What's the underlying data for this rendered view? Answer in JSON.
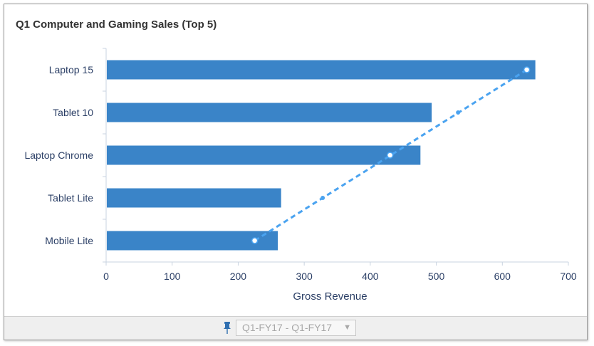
{
  "panel": {
    "title": "Q1 Computer and Gaming Sales (Top 5)"
  },
  "footer": {
    "filter_value": "Q1-FY17 - Q1-FY17",
    "pin_icon": "pin-icon",
    "caret_icon": "chevron-down-icon"
  },
  "colors": {
    "bar": "#3a84c8",
    "trend": "#4aa3f0",
    "axis_text": "#2b3f66"
  },
  "chart_data": {
    "type": "bar",
    "orientation": "horizontal",
    "title": "Q1 Computer and Gaming Sales (Top 5)",
    "xlabel": "Gross Revenue",
    "ylabel": "",
    "xlim": [
      0,
      700
    ],
    "xticks": [
      "0",
      "100",
      "200",
      "300",
      "400",
      "500",
      "600",
      "700"
    ],
    "categories": [
      "Laptop 15",
      "Tablet 10",
      "Laptop Chrome",
      "Tablet Lite",
      "Mobile Lite"
    ],
    "values": [
      650,
      493,
      476,
      265,
      260
    ],
    "trendline": {
      "type": "linear",
      "style": "dashed",
      "points": [
        {
          "category": "Laptop 15",
          "x": 637
        },
        {
          "category": "Tablet 10",
          "x": 533
        },
        {
          "category": "Laptop Chrome",
          "x": 430
        },
        {
          "category": "Tablet Lite",
          "x": 328
        },
        {
          "category": "Mobile Lite",
          "x": 225
        }
      ]
    },
    "grid": false,
    "legend": "none"
  }
}
